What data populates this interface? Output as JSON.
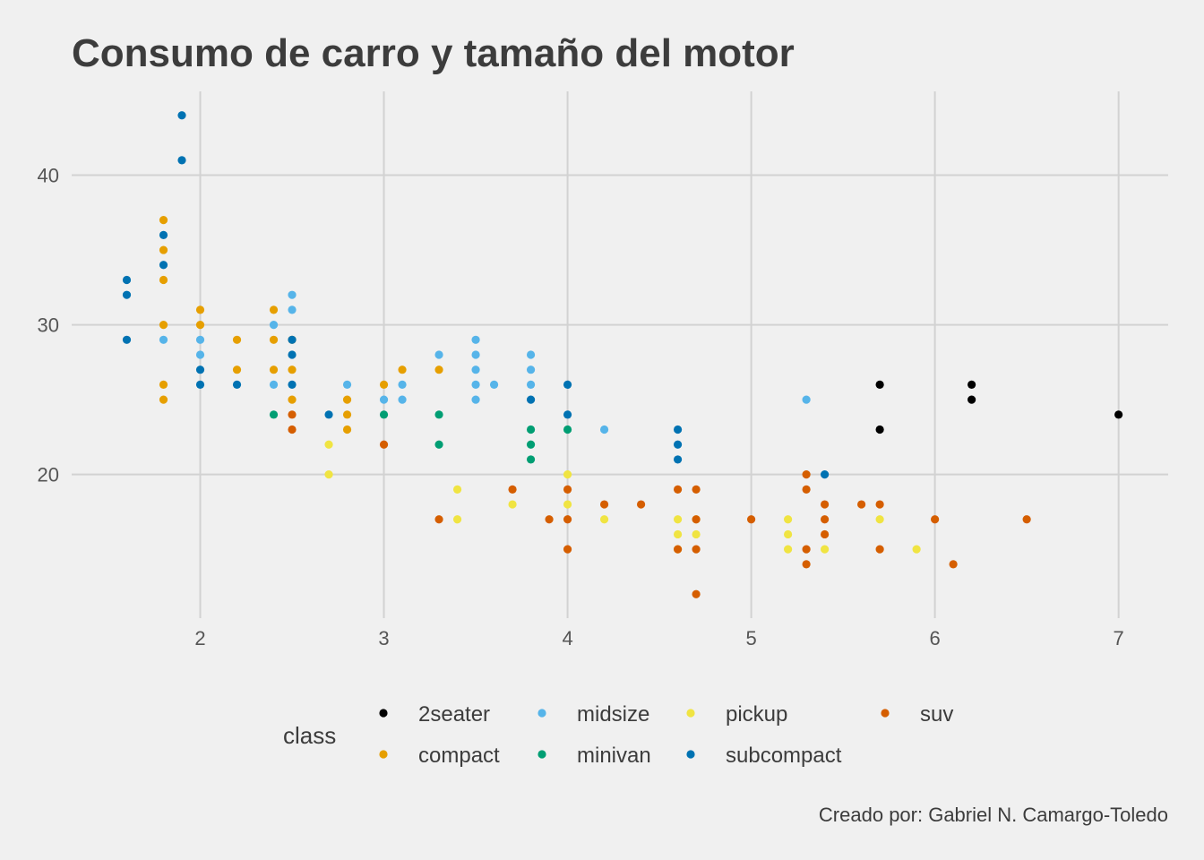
{
  "chart_data": {
    "type": "scatter",
    "title": "Consumo de carro y tamaño del motor",
    "xlabel": "",
    "ylabel": "",
    "caption": "Creado por: Gabriel N. Camargo-Toledo",
    "xlim": [
      1.3,
      7.27
    ],
    "ylim": [
      10.4,
      45.6
    ],
    "x_ticks": [
      2,
      3,
      4,
      5,
      6,
      7
    ],
    "y_ticks": [
      20,
      30,
      40
    ],
    "grid": true,
    "legend": {
      "title": "class",
      "position": "bottom",
      "entries": [
        "2seater",
        "compact",
        "midsize",
        "minivan",
        "pickup",
        "subcompact",
        "suv"
      ]
    },
    "series": [
      {
        "name": "2seater",
        "color": "#000000",
        "points": [
          [
            5.7,
            26
          ],
          [
            5.7,
            23
          ],
          [
            6.2,
            26
          ],
          [
            6.2,
            25
          ],
          [
            7.0,
            24
          ]
        ]
      },
      {
        "name": "compact",
        "color": "#E69F00",
        "points": [
          [
            1.8,
            37
          ],
          [
            1.8,
            35
          ],
          [
            1.8,
            33
          ],
          [
            1.8,
            30
          ],
          [
            1.8,
            26
          ],
          [
            1.8,
            25
          ],
          [
            2.0,
            31
          ],
          [
            2.0,
            30
          ],
          [
            2.2,
            29
          ],
          [
            2.2,
            27
          ],
          [
            2.4,
            31
          ],
          [
            2.4,
            29
          ],
          [
            2.4,
            27
          ],
          [
            2.5,
            29
          ],
          [
            2.5,
            27
          ],
          [
            2.5,
            25
          ],
          [
            2.8,
            25
          ],
          [
            2.8,
            24
          ],
          [
            2.8,
            23
          ],
          [
            3.0,
            26
          ],
          [
            3.1,
            27
          ],
          [
            3.3,
            27
          ]
        ]
      },
      {
        "name": "midsize",
        "color": "#56B4E9",
        "points": [
          [
            1.8,
            29
          ],
          [
            2.0,
            29
          ],
          [
            2.0,
            28
          ],
          [
            2.4,
            30
          ],
          [
            2.4,
            26
          ],
          [
            2.5,
            32
          ],
          [
            2.5,
            31
          ],
          [
            2.8,
            26
          ],
          [
            3.0,
            25
          ],
          [
            3.1,
            26
          ],
          [
            3.1,
            25
          ],
          [
            3.3,
            28
          ],
          [
            3.5,
            29
          ],
          [
            3.5,
            28
          ],
          [
            3.5,
            27
          ],
          [
            3.5,
            26
          ],
          [
            3.5,
            25
          ],
          [
            3.6,
            26
          ],
          [
            3.8,
            28
          ],
          [
            3.8,
            27
          ],
          [
            3.8,
            26
          ],
          [
            4.2,
            23
          ],
          [
            5.3,
            25
          ]
        ]
      },
      {
        "name": "minivan",
        "color": "#009E73",
        "points": [
          [
            2.4,
            24
          ],
          [
            3.0,
            24
          ],
          [
            3.3,
            24
          ],
          [
            3.3,
            22
          ],
          [
            3.8,
            23
          ],
          [
            3.8,
            22
          ],
          [
            3.8,
            21
          ],
          [
            4.0,
            23
          ]
        ]
      },
      {
        "name": "pickup",
        "color": "#F0E442",
        "points": [
          [
            2.7,
            22
          ],
          [
            2.7,
            20
          ],
          [
            3.4,
            19
          ],
          [
            3.4,
            17
          ],
          [
            3.7,
            18
          ],
          [
            4.0,
            20
          ],
          [
            4.0,
            18
          ],
          [
            4.2,
            17
          ],
          [
            4.6,
            17
          ],
          [
            4.6,
            16
          ],
          [
            4.6,
            15
          ],
          [
            4.7,
            16
          ],
          [
            4.7,
            17
          ],
          [
            5.2,
            17
          ],
          [
            5.2,
            16
          ],
          [
            5.2,
            15
          ],
          [
            5.4,
            15
          ],
          [
            5.7,
            17
          ],
          [
            5.9,
            15
          ]
        ]
      },
      {
        "name": "subcompact",
        "color": "#0072B2",
        "points": [
          [
            1.6,
            33
          ],
          [
            1.6,
            32
          ],
          [
            1.6,
            29
          ],
          [
            1.8,
            36
          ],
          [
            1.8,
            34
          ],
          [
            1.9,
            44
          ],
          [
            1.9,
            41
          ],
          [
            2.0,
            27
          ],
          [
            2.0,
            26
          ],
          [
            2.2,
            26
          ],
          [
            2.5,
            29
          ],
          [
            2.5,
            28
          ],
          [
            2.5,
            26
          ],
          [
            2.7,
            24
          ],
          [
            3.8,
            25
          ],
          [
            4.0,
            26
          ],
          [
            4.0,
            24
          ],
          [
            4.6,
            23
          ],
          [
            4.6,
            22
          ],
          [
            4.6,
            21
          ],
          [
            5.4,
            20
          ]
        ]
      },
      {
        "name": "suv",
        "color": "#D55E00",
        "points": [
          [
            2.5,
            24
          ],
          [
            2.5,
            23
          ],
          [
            3.0,
            22
          ],
          [
            3.3,
            17
          ],
          [
            3.7,
            19
          ],
          [
            3.9,
            17
          ],
          [
            4.0,
            19
          ],
          [
            4.0,
            17
          ],
          [
            4.0,
            15
          ],
          [
            4.2,
            18
          ],
          [
            4.4,
            18
          ],
          [
            4.6,
            19
          ],
          [
            4.6,
            15
          ],
          [
            4.7,
            19
          ],
          [
            4.7,
            17
          ],
          [
            4.7,
            15
          ],
          [
            4.7,
            12
          ],
          [
            5.0,
            17
          ],
          [
            5.3,
            20
          ],
          [
            5.3,
            19
          ],
          [
            5.3,
            15
          ],
          [
            5.3,
            14
          ],
          [
            5.4,
            18
          ],
          [
            5.4,
            17
          ],
          [
            5.4,
            16
          ],
          [
            5.6,
            18
          ],
          [
            5.7,
            18
          ],
          [
            5.7,
            15
          ],
          [
            6.0,
            17
          ],
          [
            6.1,
            14
          ],
          [
            6.5,
            17
          ]
        ]
      }
    ]
  }
}
